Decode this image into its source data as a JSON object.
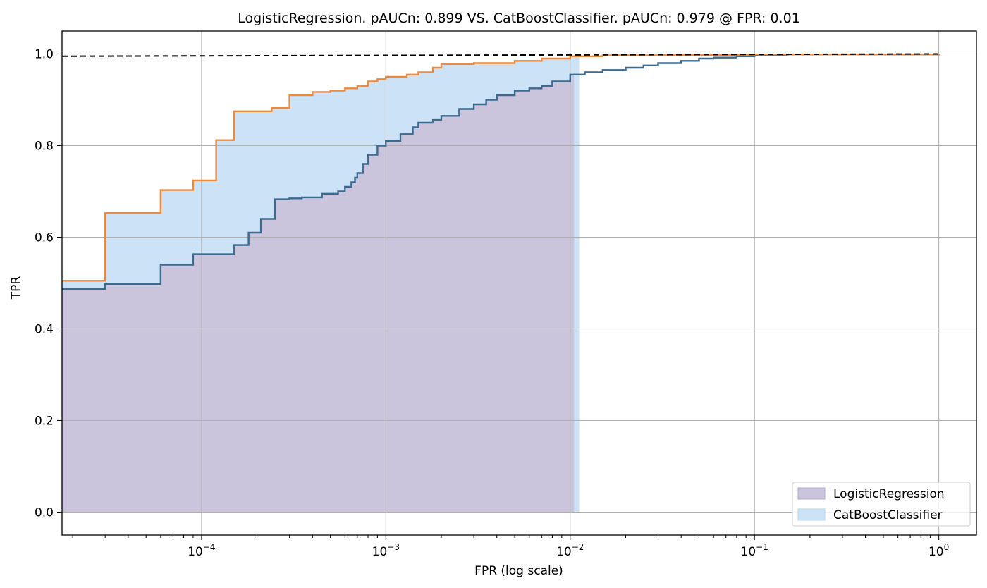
{
  "chart_data": {
    "type": "area",
    "title": "LogisticRegression. pAUCn: 0.899 VS. CatBoostClassifier. pAUCn: 0.979 @ FPR: 0.01",
    "xlabel": "FPR (log scale)",
    "ylabel": "TPR",
    "x_scale": "log",
    "xlim": [
      1.75e-05,
      1.6
    ],
    "ylim": [
      -0.05,
      1.05
    ],
    "grid": true,
    "x_ticks": [
      {
        "value": 0.0001,
        "base": "10",
        "exp": "−4"
      },
      {
        "value": 0.001,
        "base": "10",
        "exp": "−3"
      },
      {
        "value": 0.01,
        "base": "10",
        "exp": "−2"
      },
      {
        "value": 0.1,
        "base": "10",
        "exp": "−1"
      },
      {
        "value": 1,
        "base": "10",
        "exp": "0"
      }
    ],
    "y_ticks": [
      {
        "value": 0.0,
        "label": "0.0"
      },
      {
        "value": 0.2,
        "label": "0.2"
      },
      {
        "value": 0.4,
        "label": "0.4"
      },
      {
        "value": 0.6,
        "label": "0.6"
      },
      {
        "value": 0.8,
        "label": "0.8"
      },
      {
        "value": 1.0,
        "label": "1.0"
      }
    ],
    "legend_position": "bottom-right",
    "legend": [
      {
        "label": "LogisticRegression",
        "color": "#cbc4dd"
      },
      {
        "label": "CatBoostClassifier",
        "color": "#cce3f7"
      }
    ],
    "fill_limit_fpr": [
      0.0105,
      0.0112
    ],
    "colors": {
      "logistic_line": "#3d6a8f",
      "catboost_line": "#ee8a3d",
      "logistic_fill": "#cbc4dd",
      "catboost_fill": "#cce3f7",
      "reference_line": "#000000",
      "grid": "#b0b0b0"
    },
    "series": [
      {
        "name": "LogisticRegression",
        "fpr": [
          1.75e-05,
          3e-05,
          6e-05,
          9e-05,
          0.00015,
          0.00018,
          0.00021,
          0.00025,
          0.0003,
          0.00035,
          0.00045,
          0.00055,
          0.0006,
          0.00065,
          0.00068,
          0.0007,
          0.00075,
          0.0008,
          0.0009,
          0.001,
          0.0012,
          0.0014,
          0.0015,
          0.0018,
          0.002,
          0.0025,
          0.003,
          0.0035,
          0.004,
          0.005,
          0.006,
          0.007,
          0.008,
          0.01,
          0.012,
          0.015,
          0.02,
          0.025,
          0.03,
          0.04,
          0.05,
          0.06,
          0.08,
          0.1,
          0.15,
          1.0
        ],
        "tpr": [
          0.487,
          0.498,
          0.54,
          0.563,
          0.583,
          0.61,
          0.64,
          0.683,
          0.685,
          0.687,
          0.695,
          0.7,
          0.71,
          0.72,
          0.73,
          0.74,
          0.76,
          0.78,
          0.8,
          0.81,
          0.825,
          0.84,
          0.85,
          0.856,
          0.865,
          0.88,
          0.89,
          0.9,
          0.91,
          0.92,
          0.925,
          0.93,
          0.94,
          0.955,
          0.96,
          0.965,
          0.97,
          0.975,
          0.98,
          0.985,
          0.99,
          0.992,
          0.995,
          0.998,
          0.999,
          1.0
        ]
      },
      {
        "name": "CatBoostClassifier",
        "fpr": [
          1.75e-05,
          3e-05,
          6e-05,
          9e-05,
          0.00012,
          0.00015,
          0.00024,
          0.0003,
          0.0004,
          0.0005,
          0.0006,
          0.0007,
          0.0008,
          0.0009,
          0.001,
          0.0013,
          0.0015,
          0.0018,
          0.002,
          0.003,
          0.005,
          0.007,
          0.01,
          0.015,
          0.03,
          0.1,
          1.0
        ],
        "tpr": [
          0.505,
          0.653,
          0.703,
          0.724,
          0.812,
          0.875,
          0.882,
          0.91,
          0.917,
          0.92,
          0.925,
          0.93,
          0.94,
          0.945,
          0.95,
          0.955,
          0.96,
          0.97,
          0.978,
          0.98,
          0.985,
          0.99,
          0.995,
          0.997,
          0.998,
          0.999,
          1.0
        ]
      },
      {
        "name": "reference",
        "style": "dashed",
        "fpr": [
          1.75e-05,
          1.0
        ],
        "tpr": [
          0.995,
          1.0
        ]
      }
    ]
  }
}
